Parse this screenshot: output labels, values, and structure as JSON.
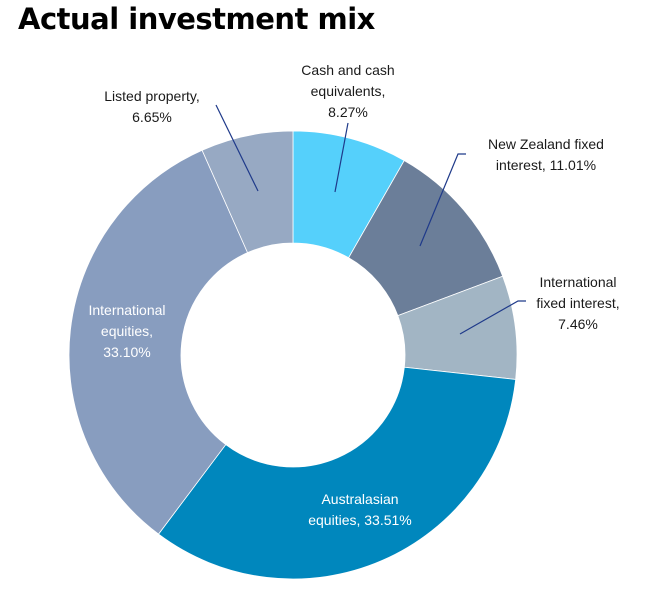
{
  "chart_data": {
    "type": "pie",
    "title": "Actual investment mix",
    "donut": true,
    "slices": [
      {
        "label": "Cash and cash equivalents",
        "value": 8.27,
        "text": [
          "Cash and cash",
          "equivalents,",
          "8.27%"
        ],
        "color": "#55d0fb"
      },
      {
        "label": "New Zealand fixed interest",
        "value": 11.01,
        "text": [
          "New Zealand fixed",
          "interest, 11.01%"
        ],
        "color": "#6b7e99"
      },
      {
        "label": "International fixed interest",
        "value": 7.46,
        "text": [
          "International",
          "fixed interest,",
          "7.46%"
        ],
        "color": "#a2b5c4"
      },
      {
        "label": "Australasian equities",
        "value": 33.51,
        "text": [
          "Australasian",
          "equities, 33.51%"
        ],
        "color": "#0087bd"
      },
      {
        "label": "International equities",
        "value": 33.1,
        "text": [
          "International",
          "equities,",
          "33.10%"
        ],
        "color": "#889dbf"
      },
      {
        "label": "Listed property",
        "value": 6.65,
        "text": [
          "Listed property,",
          "6.65%"
        ],
        "color": "#97a9c3"
      }
    ],
    "leader_color": "#1f3a8a"
  }
}
